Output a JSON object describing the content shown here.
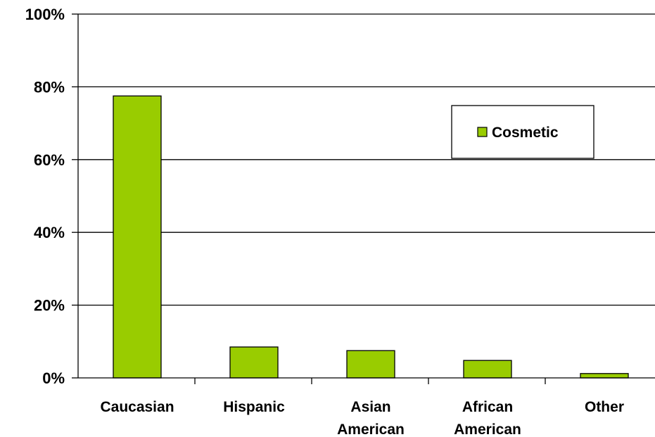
{
  "chart_data": {
    "type": "bar",
    "categories": [
      [
        "Caucasian"
      ],
      [
        "Hispanic"
      ],
      [
        "Asian",
        "American"
      ],
      [
        "African",
        "American"
      ],
      [
        "Other"
      ]
    ],
    "series": [
      {
        "name": "Cosmetic",
        "values": [
          77.5,
          8.5,
          7.5,
          4.8,
          1.2
        ],
        "color": "#99cc00"
      }
    ],
    "ylim": [
      0,
      100
    ],
    "yticks": [
      0,
      20,
      40,
      60,
      80,
      100
    ],
    "ytick_labels": [
      "0%",
      "20%",
      "40%",
      "60%",
      "80%",
      "100%"
    ],
    "grid": true,
    "legend_position": "top-right"
  }
}
